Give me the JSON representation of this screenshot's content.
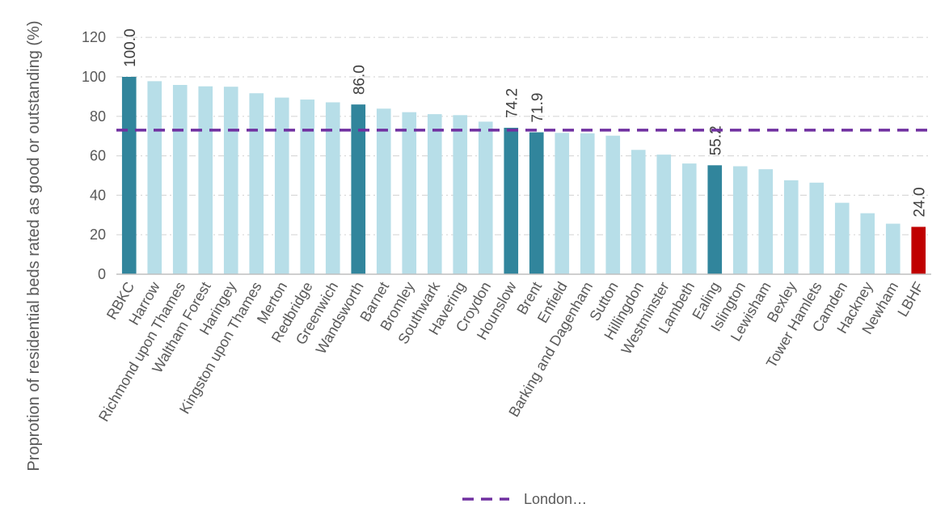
{
  "chart_data": {
    "type": "bar",
    "title": "",
    "xlabel": "",
    "ylabel": "Proprotion of residential beds rated as good or outstanding (%)",
    "ylim": [
      0,
      130
    ],
    "yticks": [
      0,
      20,
      40,
      60,
      80,
      100,
      120
    ],
    "grid": "horizontal dash-dot",
    "categories": [
      "RBKC",
      "Harrow",
      "Richmond upon Thames",
      "Waltham Forest",
      "Haringey",
      "Kingston upon Thames",
      "Merton",
      "Redbridge",
      "Greenwich",
      "Wandsworth",
      "Barnet",
      "Bromley",
      "Southwark",
      "Havering",
      "Croydon",
      "Hounslow",
      "Brent",
      "Enfield",
      "Barking and Dagenham",
      "Sutton",
      "Hillingdon",
      "Westminster",
      "Lambeth",
      "Ealing",
      "Islington",
      "Lewisham",
      "Bexley",
      "Tower Hamlets",
      "Camden",
      "Hackney",
      "Newham",
      "LBHF"
    ],
    "values": [
      100.0,
      97.8,
      95.9,
      95.2,
      95.0,
      91.7,
      89.5,
      88.5,
      87.1,
      86.0,
      83.9,
      82.1,
      81.1,
      80.6,
      77.3,
      74.2,
      71.9,
      71.6,
      71.4,
      70.2,
      63.0,
      60.6,
      56.1,
      55.2,
      54.7,
      53.2,
      47.6,
      46.4,
      36.2,
      30.9,
      25.6,
      24.0
    ],
    "highlight": {
      "RBKC": "#31859C",
      "Wandsworth": "#31859C",
      "Hounslow": "#31859C",
      "Brent": "#31859C",
      "Ealing": "#31859C",
      "LBHF": "#C00000"
    },
    "data_labels": {
      "RBKC": "100.0",
      "Wandsworth": "86.0",
      "Hounslow": "74.2",
      "Brent": "71.9",
      "Ealing": "55.2",
      "LBHF": "24.0"
    },
    "reference_line": {
      "name": "London…",
      "value": 73.0,
      "color": "#7030A0",
      "style": "dashed"
    },
    "legend": {
      "placement": "bottom-center",
      "entries": [
        "London…"
      ]
    },
    "colors": {
      "default_bar": "#B7DEE8",
      "axis": "#BFBFBF",
      "grid": "#D9D9D9"
    }
  }
}
